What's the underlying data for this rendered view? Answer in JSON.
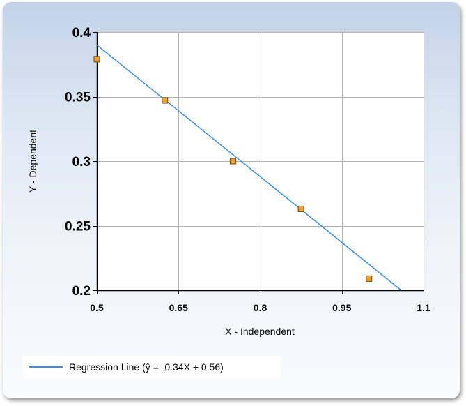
{
  "chart_data": {
    "type": "scatter",
    "title": "",
    "xlabel": "X - Independent",
    "ylabel": "Y - Dependent",
    "xlim": [
      0.5,
      1.1
    ],
    "ylim": [
      0.2,
      0.4
    ],
    "x_ticks": [
      0.5,
      0.65,
      0.8,
      0.95,
      1.1
    ],
    "x_tick_labels": [
      "0.5",
      "0.65",
      "0.8",
      "0.95",
      "1.1"
    ],
    "y_ticks": [
      0.2,
      0.25,
      0.3,
      0.35,
      0.4
    ],
    "y_tick_labels": [
      "0.2",
      "0.25",
      "0.3",
      "0.35",
      "0.4"
    ],
    "grid": true,
    "series": [
      {
        "kind": "points",
        "x": [
          0.5,
          0.625,
          0.75,
          0.875,
          1.0
        ],
        "y": [
          0.379,
          0.347,
          0.3,
          0.263,
          0.209
        ],
        "color": "#f0a030"
      },
      {
        "kind": "line",
        "name": "Regression Line (ŷ = -0.34X + 0.56)",
        "slope": -0.34,
        "intercept": 0.56,
        "color": "#3b8ee6"
      }
    ],
    "legend_position": "bottom-left"
  }
}
